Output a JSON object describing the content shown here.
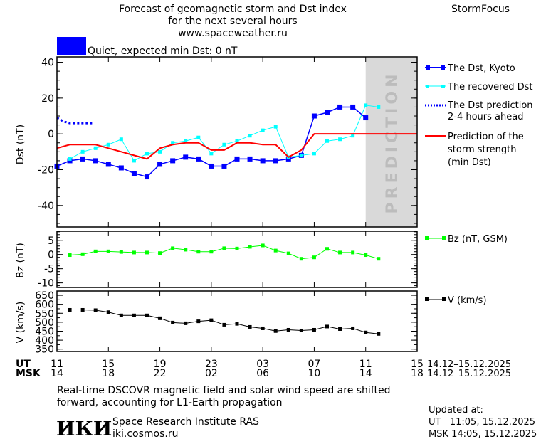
{
  "header": {
    "title_line1": "Forecast of geomagnetic storm and Dst index",
    "title_line2": "for the next several hours",
    "url": "www.spaceweather.ru",
    "brand": "StormFocus",
    "status_text": "Quiet, expected min Dst: 0 nT",
    "status_color": "#0000ff"
  },
  "prediction_label": "PREDICTION",
  "legend": {
    "dst_kyoto": "The Dst, Kyoto",
    "dst_recovered": "The recovered Dst",
    "dst_prediction_1": "The Dst prediction",
    "dst_prediction_2": "2-4 hours ahead",
    "storm_1": "Prediction of the",
    "storm_2": "storm strength",
    "storm_3": "(min Dst)",
    "bz": "Bz (nT, GSM)",
    "v": "V (km/s)"
  },
  "xaxis": {
    "ut_label": "UT",
    "msk_label": "MSK",
    "ut_ticks": [
      "11",
      "15",
      "19",
      "23",
      "03",
      "07",
      "11",
      "15"
    ],
    "msk_ticks": [
      "14",
      "18",
      "22",
      "02",
      "06",
      "10",
      "14",
      "18"
    ],
    "ut_range": "14.12–15.12.2025",
    "msk_range": "14.12–15.12.2025"
  },
  "footer": {
    "note_line1": "Real-time DSCOVR magnetic field and solar wind speed are shifted",
    "note_line2": "forward, accounting for L1-Earth propagation",
    "logo_text": "ИКИ",
    "institute": "Space Research Institute RAS",
    "institute_url": "iki.cosmos.ru",
    "updated_label": "Updated at:",
    "updated_ut": "UT   11:05, 15.12.2025",
    "updated_msk": "MSK 14:05, 15.12.2025"
  },
  "chart_data": [
    {
      "type": "line",
      "ylabel": "Dst (nT)",
      "ylim": [
        -52,
        43
      ],
      "yticks": [
        40,
        20,
        0,
        -20,
        -40
      ],
      "x_hours_ut": [
        11,
        12,
        13,
        14,
        15,
        16,
        17,
        18,
        19,
        20,
        21,
        22,
        23,
        0,
        1,
        2,
        3,
        4,
        5,
        6,
        7,
        8,
        9,
        10,
        11,
        12,
        13,
        14,
        15
      ],
      "prediction_from_ut": "11:00 15.12",
      "series": [
        {
          "name": "The Dst, Kyoto",
          "color": "#0000ff",
          "x": [
            11,
            12,
            13,
            14,
            15,
            16,
            17,
            18,
            19,
            20,
            21,
            22,
            23,
            0,
            1,
            2,
            3,
            4,
            5,
            6,
            7,
            8,
            9,
            10,
            11
          ],
          "values": [
            -18,
            -15,
            -14,
            -15,
            -17,
            -19,
            -22,
            -24,
            -17,
            -15,
            -13,
            -14,
            -18,
            -18,
            -14,
            -14,
            -15,
            -15,
            -14,
            -12,
            10,
            12,
            15,
            15,
            9
          ]
        },
        {
          "name": "The recovered Dst",
          "color": "#00ffff",
          "x": [
            12,
            13,
            14,
            15,
            16,
            17,
            18,
            19,
            20,
            21,
            22,
            23,
            0,
            1,
            2,
            3,
            4,
            5,
            6,
            7,
            8,
            9,
            10,
            11,
            12
          ],
          "values": [
            -14,
            -10,
            -8,
            -6,
            -3,
            -15,
            -11,
            -10,
            -5,
            -4,
            -2,
            -11,
            -6,
            -4,
            -1,
            2,
            4,
            -13,
            -12,
            -11,
            -4,
            -3,
            -1,
            16,
            15
          ]
        },
        {
          "name": "The Dst prediction 2-4 hours ahead",
          "color": "#0000ff",
          "x": [
            11,
            11.5,
            12,
            13,
            13.75
          ],
          "values": [
            9,
            7,
            6,
            6,
            6
          ]
        },
        {
          "name": "Prediction of the storm strength (min Dst)",
          "color": "#ff0000",
          "x": [
            11,
            12,
            13,
            14,
            15,
            16,
            17,
            18,
            19,
            20,
            21,
            22,
            23,
            0,
            1,
            2,
            3,
            4,
            5,
            6,
            7,
            8,
            9,
            10,
            11,
            12,
            13,
            14,
            15
          ],
          "values": [
            -8,
            -6,
            -6,
            -6,
            -8,
            -10,
            -12,
            -14,
            -8,
            -6,
            -5,
            -5,
            -9,
            -9,
            -5,
            -5,
            -6,
            -6,
            -13,
            -9,
            0,
            0,
            0,
            0,
            0,
            0,
            0,
            0,
            0
          ]
        }
      ]
    },
    {
      "type": "line",
      "ylabel": "Bz (nT)",
      "ylim": [
        -11.6,
        8.2
      ],
      "yticks": [
        5,
        0,
        -5,
        -10
      ],
      "series": [
        {
          "name": "Bz (nT, GSM)",
          "color": "#00ff00",
          "x": [
            12,
            13,
            14,
            15,
            16,
            17,
            18,
            19,
            20,
            21,
            22,
            23,
            0,
            1,
            2,
            3,
            4,
            5,
            6,
            7,
            8,
            9,
            10,
            11,
            12
          ],
          "values": [
            -0.2,
            0.1,
            1.1,
            1.1,
            0.9,
            0.7,
            0.7,
            0.5,
            2.2,
            1.7,
            1.0,
            1.0,
            2.2,
            2.1,
            2.7,
            3.2,
            1.4,
            0.4,
            -1.5,
            -1.0,
            2.0,
            0.7,
            0.7,
            -0.2,
            -1.5
          ]
        }
      ]
    },
    {
      "type": "line",
      "ylabel": "V (km/s)",
      "ylim": [
        337,
        674
      ],
      "yticks": [
        650,
        600,
        550,
        500,
        450,
        400,
        350
      ],
      "series": [
        {
          "name": "V (km/s)",
          "color": "#000000",
          "x": [
            12,
            13,
            14,
            15,
            16,
            17,
            18,
            19,
            20,
            21,
            22,
            23,
            0,
            1,
            2,
            3,
            4,
            5,
            6,
            7,
            8,
            9,
            10,
            11,
            12
          ],
          "values": [
            569,
            569,
            567,
            556,
            538,
            538,
            538,
            522,
            498,
            494,
            505,
            511,
            486,
            491,
            474,
            466,
            451,
            458,
            454,
            458,
            476,
            462,
            466,
            443,
            435
          ]
        }
      ]
    }
  ]
}
